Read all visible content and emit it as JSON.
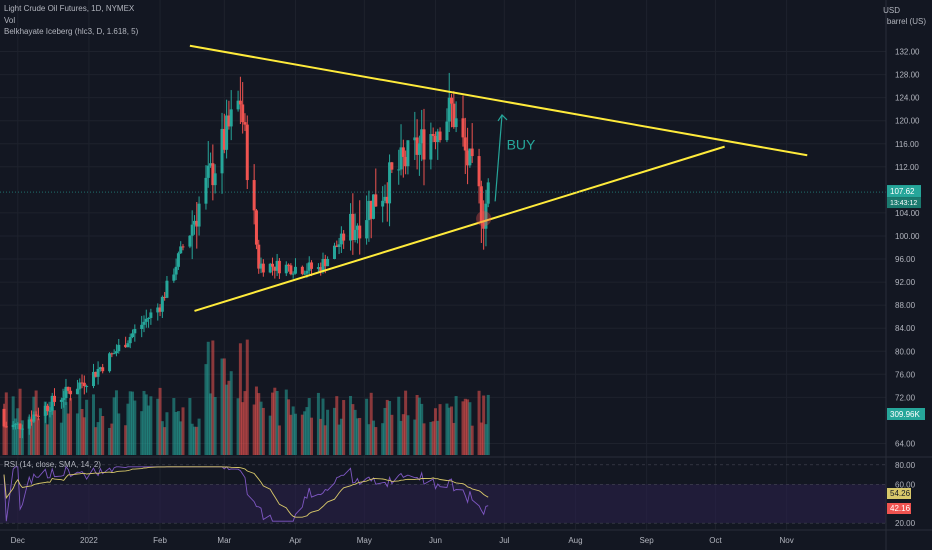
{
  "header": {
    "symbol_line": "Light Crude Oil Futures, 1D, NYMEX",
    "vol_label": "Vol",
    "indicator_label": "Belkhayate Iceberg (hlc3, D, 1.618, 5)"
  },
  "price_axis": {
    "currency": "USD",
    "unit": "barrel (US)",
    "ticks": [
      "132.00",
      "128.00",
      "124.00",
      "120.00",
      "116.00",
      "112.00",
      "104.00",
      "100.00",
      "96.00",
      "92.00",
      "88.00",
      "84.00",
      "80.00",
      "76.00",
      "72.00",
      "64.00"
    ],
    "last_price": "107.62",
    "countdown": "13:43:12",
    "volume_value": "309.96K"
  },
  "time_axis": {
    "ticks": [
      "Dec",
      "2022",
      "Feb",
      "Mar",
      "Apr",
      "May",
      "Jun",
      "Jul",
      "Aug",
      "Sep",
      "Oct",
      "Nov"
    ]
  },
  "rsi_panel": {
    "label": "RSI (14, close, SMA, 14, 2)",
    "ticks": [
      "80.00",
      "60.00",
      "20.00"
    ],
    "sma_value": "54.26",
    "rsi_value": "42.16"
  },
  "annotations": {
    "buy_label": "BUY"
  },
  "colors": {
    "background": "#131722",
    "up": "#26a69a",
    "down": "#ef5350",
    "trendline": "#ffeb3b",
    "arrow": "#26a69a",
    "rsi_line": "#7e57c2",
    "rsi_sma": "#d8c86a",
    "rsi_band": "#2a1f4a"
  },
  "chart_data": {
    "type": "candlestick",
    "title": "Light Crude Oil Futures, 1D, NYMEX",
    "y_range": [
      62,
      136
    ],
    "x_range": [
      "2021-11-25",
      "2022-11-15"
    ],
    "key_points": [
      {
        "x": "2021-12-01",
        "close": 67
      },
      {
        "x": "2022-01-03",
        "close": 76
      },
      {
        "x": "2022-02-01",
        "close": 88
      },
      {
        "x": "2022-03-08",
        "close": 123.7
      },
      {
        "x": "2022-03-16",
        "close": 95
      },
      {
        "x": "2022-04-11",
        "close": 94.3
      },
      {
        "x": "2022-05-17",
        "close": 112
      },
      {
        "x": "2022-06-08",
        "close": 122
      },
      {
        "x": "2022-06-22",
        "close": 104
      },
      {
        "x": "2022-06-24",
        "close": 107.62
      }
    ],
    "upper_trendline": [
      {
        "x": "2022-02-14",
        "y": 133
      },
      {
        "x": "2022-11-10",
        "y": 114
      }
    ],
    "lower_trendline": [
      {
        "x": "2022-02-16",
        "y": 87
      },
      {
        "x": "2022-10-05",
        "y": 115.5
      }
    ],
    "rsi_ticks": [
      80,
      60,
      20
    ]
  }
}
